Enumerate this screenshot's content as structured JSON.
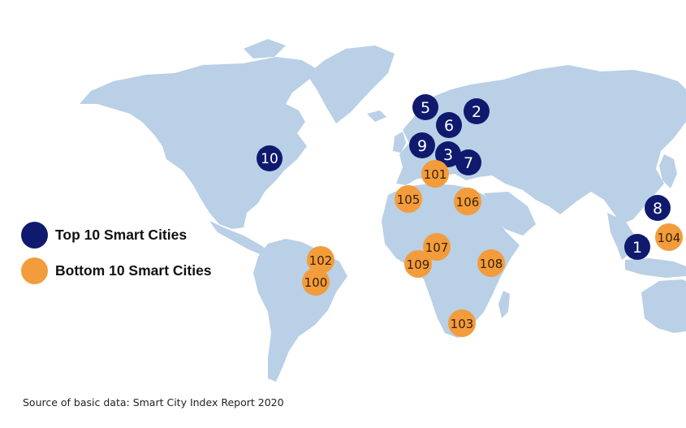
{
  "colors": {
    "land": "#b9d0e6",
    "top": "#0f1a6e",
    "bottom": "#f39c3c",
    "top_text": "#ffffff",
    "bottom_text": "#3a2200"
  },
  "legend": {
    "top_label": "Top 10 Smart Cities",
    "bottom_label": "Bottom 10 Smart Cities"
  },
  "markers": [
    {
      "label": "1",
      "group": "top"
    },
    {
      "label": "2",
      "group": "top"
    },
    {
      "label": "3",
      "group": "top"
    },
    {
      "label": "5",
      "group": "top"
    },
    {
      "label": "6",
      "group": "top"
    },
    {
      "label": "7",
      "group": "top"
    },
    {
      "label": "8",
      "group": "top"
    },
    {
      "label": "9",
      "group": "top"
    },
    {
      "label": "10",
      "group": "top"
    },
    {
      "label": "100",
      "group": "bottom"
    },
    {
      "label": "101",
      "group": "bottom"
    },
    {
      "label": "102",
      "group": "bottom"
    },
    {
      "label": "103",
      "group": "bottom"
    },
    {
      "label": "104",
      "group": "bottom"
    },
    {
      "label": "105",
      "group": "bottom"
    },
    {
      "label": "106",
      "group": "bottom"
    },
    {
      "label": "107",
      "group": "bottom"
    },
    {
      "label": "108",
      "group": "bottom"
    },
    {
      "label": "109",
      "group": "bottom"
    }
  ],
  "source": "Source of basic data: Smart City Index Report 2020"
}
